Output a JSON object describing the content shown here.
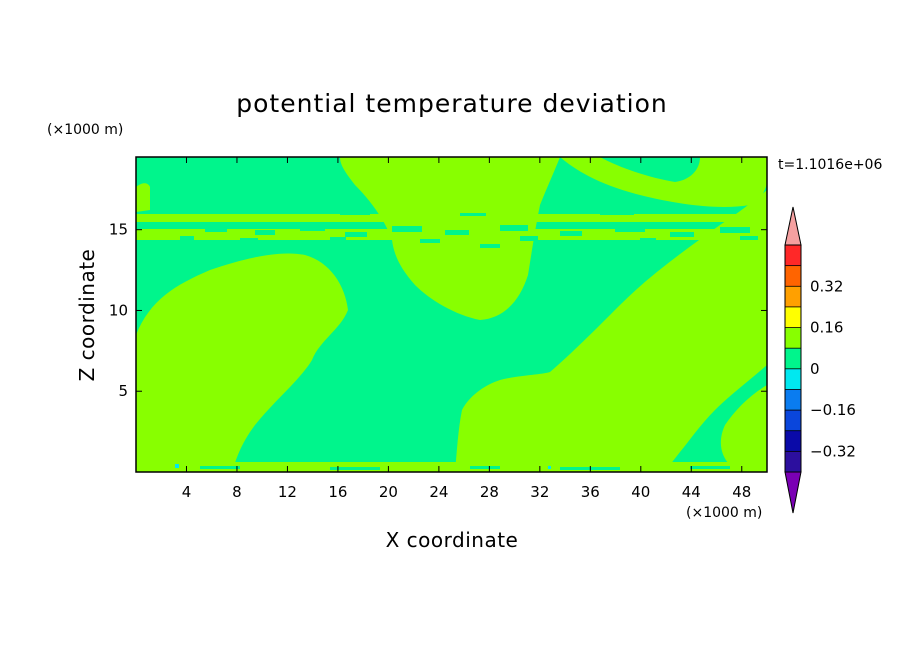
{
  "chart_data": {
    "type": "heatmap",
    "title": "potential temperature deviation",
    "xlabel": "X coordinate",
    "ylabel": "Z coordinate",
    "x_unit": "(×1000 m)",
    "y_unit": "(×1000 m)",
    "time_label": "t=1.1016e+06",
    "xlim": [
      0,
      50
    ],
    "ylim": [
      0,
      19.5
    ],
    "x_ticks": [
      4,
      8,
      12,
      16,
      20,
      24,
      28,
      32,
      36,
      40,
      44,
      48
    ],
    "y_ticks": [
      5,
      10,
      15
    ],
    "colorbar": {
      "levels": [
        {
          "from": -0.4,
          "to": -0.32,
          "color": "#2c0f9e"
        },
        {
          "from": -0.32,
          "to": -0.24,
          "color": "#0a0aa8"
        },
        {
          "from": -0.24,
          "to": -0.16,
          "color": "#0a46dc"
        },
        {
          "from": -0.16,
          "to": -0.08,
          "color": "#0a7cf0"
        },
        {
          "from": -0.08,
          "to": 0.0,
          "color": "#00e8f0"
        },
        {
          "from": 0.0,
          "to": 0.08,
          "color": "#00f58c"
        },
        {
          "from": 0.08,
          "to": 0.16,
          "color": "#88ff00"
        },
        {
          "from": 0.16,
          "to": 0.24,
          "color": "#ffff00"
        },
        {
          "from": 0.24,
          "to": 0.32,
          "color": "#ffa000"
        },
        {
          "from": 0.32,
          "to": 0.4,
          "color": "#ff6400"
        },
        {
          "from": 0.4,
          "to": 0.48,
          "color": "#ff2828"
        }
      ],
      "under_color": "#7a00b4",
      "over_color": "#f5a0a0",
      "tick_labels": [
        "0.32",
        "0.16",
        "0",
        "−0.16",
        "−0.32"
      ],
      "tick_values": [
        0.32,
        0.16,
        0,
        -0.16,
        -0.32
      ]
    },
    "field_colors": {
      "background": "#00f58c",
      "positive": "#88ff00",
      "negative_speck": "#00e8f0"
    }
  }
}
